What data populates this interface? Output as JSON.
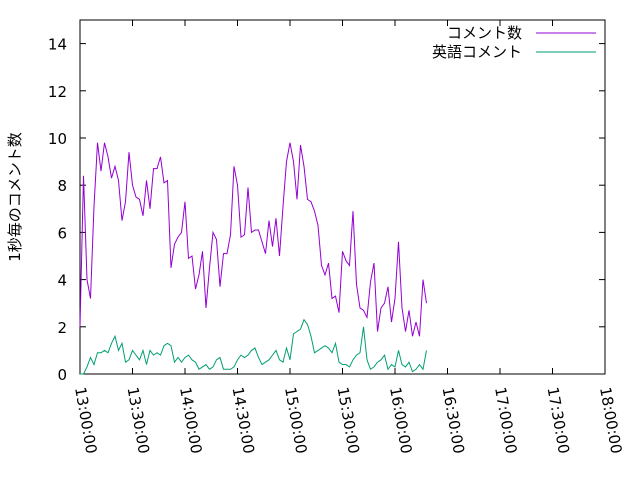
{
  "chart_data": {
    "type": "line",
    "title": "",
    "xlabel": "",
    "ylabel": "1秒毎のコメント数",
    "xlim": [
      "13:00:00",
      "18:00:00"
    ],
    "ylim": [
      0,
      15
    ],
    "yticks": [
      "0",
      "2",
      "4",
      "6",
      "8",
      "10",
      "12",
      "14"
    ],
    "xticks": [
      "13:00:00",
      "13:30:00",
      "14:00:00",
      "14:30:00",
      "15:00:00",
      "15:30:00",
      "16:00:00",
      "16:30:00",
      "17:00:00",
      "17:30:00",
      "18:00:00"
    ],
    "grid": false,
    "legend": "top-right",
    "series": [
      {
        "name": "コメント数",
        "color": "#9400d3",
        "points": [
          [
            "13:00:00",
            2.0
          ],
          [
            "13:02:00",
            8.4
          ],
          [
            "13:04:00",
            4.0
          ],
          [
            "13:06:00",
            3.2
          ],
          [
            "13:08:00",
            7.1
          ],
          [
            "13:10:00",
            9.8
          ],
          [
            "13:12:00",
            8.6
          ],
          [
            "13:14:00",
            9.8
          ],
          [
            "13:16:00",
            9.2
          ],
          [
            "13:18:00",
            8.3
          ],
          [
            "13:20:00",
            8.8
          ],
          [
            "13:22:00",
            8.2
          ],
          [
            "13:24:00",
            6.5
          ],
          [
            "13:26:00",
            7.3
          ],
          [
            "13:28:00",
            9.4
          ],
          [
            "13:30:00",
            8.0
          ],
          [
            "13:32:00",
            7.5
          ],
          [
            "13:34:00",
            7.4
          ],
          [
            "13:36:00",
            6.7
          ],
          [
            "13:38:00",
            8.2
          ],
          [
            "13:40:00",
            7.0
          ],
          [
            "13:42:00",
            8.7
          ],
          [
            "13:44:00",
            8.7
          ],
          [
            "13:46:00",
            9.2
          ],
          [
            "13:48:00",
            8.1
          ],
          [
            "13:50:00",
            8.2
          ],
          [
            "13:52:00",
            4.5
          ],
          [
            "13:54:00",
            5.5
          ],
          [
            "13:56:00",
            5.8
          ],
          [
            "13:58:00",
            6.0
          ],
          [
            "14:00:00",
            7.3
          ],
          [
            "14:02:00",
            4.9
          ],
          [
            "14:04:00",
            5.0
          ],
          [
            "14:06:00",
            3.6
          ],
          [
            "14:08:00",
            4.2
          ],
          [
            "14:10:00",
            5.2
          ],
          [
            "14:12:00",
            2.8
          ],
          [
            "14:14:00",
            4.5
          ],
          [
            "14:16:00",
            6.0
          ],
          [
            "14:18:00",
            5.7
          ],
          [
            "14:20:00",
            3.7
          ],
          [
            "14:22:00",
            5.1
          ],
          [
            "14:24:00",
            5.1
          ],
          [
            "14:26:00",
            5.9
          ],
          [
            "14:28:00",
            8.8
          ],
          [
            "14:30:00",
            8.0
          ],
          [
            "14:32:00",
            5.8
          ],
          [
            "14:34:00",
            5.9
          ],
          [
            "14:36:00",
            7.9
          ],
          [
            "14:38:00",
            6.0
          ],
          [
            "14:40:00",
            6.1
          ],
          [
            "14:42:00",
            6.1
          ],
          [
            "14:44:00",
            5.6
          ],
          [
            "14:46:00",
            5.1
          ],
          [
            "14:48:00",
            6.5
          ],
          [
            "14:50:00",
            5.4
          ],
          [
            "14:52:00",
            6.6
          ],
          [
            "14:54:00",
            5.0
          ],
          [
            "14:56:00",
            7.1
          ],
          [
            "14:58:00",
            9.0
          ],
          [
            "15:00:00",
            9.8
          ],
          [
            "15:02:00",
            9.0
          ],
          [
            "15:04:00",
            7.4
          ],
          [
            "15:06:00",
            9.7
          ],
          [
            "15:08:00",
            8.8
          ],
          [
            "15:10:00",
            7.4
          ],
          [
            "15:12:00",
            7.3
          ],
          [
            "15:14:00",
            6.9
          ],
          [
            "15:16:00",
            6.3
          ],
          [
            "15:18:00",
            4.6
          ],
          [
            "15:20:00",
            4.2
          ],
          [
            "15:22:00",
            4.7
          ],
          [
            "15:24:00",
            3.2
          ],
          [
            "15:26:00",
            3.3
          ],
          [
            "15:28:00",
            2.6
          ],
          [
            "15:30:00",
            5.2
          ],
          [
            "15:32:00",
            4.8
          ],
          [
            "15:34:00",
            4.6
          ],
          [
            "15:36:00",
            6.9
          ],
          [
            "15:38:00",
            3.8
          ],
          [
            "15:40:00",
            2.8
          ],
          [
            "15:42:00",
            2.7
          ],
          [
            "15:44:00",
            2.4
          ],
          [
            "15:46:00",
            3.9
          ],
          [
            "15:48:00",
            4.7
          ],
          [
            "15:50:00",
            1.8
          ],
          [
            "15:52:00",
            2.8
          ],
          [
            "15:54:00",
            3.0
          ],
          [
            "15:56:00",
            3.7
          ],
          [
            "15:58:00",
            2.2
          ],
          [
            "16:00:00",
            3.2
          ],
          [
            "16:02:00",
            5.6
          ],
          [
            "16:04:00",
            2.8
          ],
          [
            "16:06:00",
            1.8
          ],
          [
            "16:08:00",
            2.7
          ],
          [
            "16:10:00",
            1.6
          ],
          [
            "16:12:00",
            2.2
          ],
          [
            "16:14:00",
            1.6
          ],
          [
            "16:16:00",
            4.0
          ],
          [
            "16:18:00",
            3.0
          ]
        ]
      },
      {
        "name": "英語コメント",
        "color": "#009e73",
        "points": [
          [
            "13:00:00",
            0.0
          ],
          [
            "13:02:00",
            0.0
          ],
          [
            "13:04:00",
            0.3
          ],
          [
            "13:06:00",
            0.7
          ],
          [
            "13:08:00",
            0.4
          ],
          [
            "13:10:00",
            0.9
          ],
          [
            "13:12:00",
            0.9
          ],
          [
            "13:14:00",
            1.0
          ],
          [
            "13:16:00",
            0.9
          ],
          [
            "13:18:00",
            1.3
          ],
          [
            "13:20:00",
            1.6
          ],
          [
            "13:22:00",
            1.0
          ],
          [
            "13:24:00",
            1.3
          ],
          [
            "13:26:00",
            0.5
          ],
          [
            "13:28:00",
            0.6
          ],
          [
            "13:30:00",
            1.0
          ],
          [
            "13:32:00",
            0.8
          ],
          [
            "13:34:00",
            0.6
          ],
          [
            "13:36:00",
            1.0
          ],
          [
            "13:38:00",
            0.4
          ],
          [
            "13:40:00",
            1.0
          ],
          [
            "13:42:00",
            0.8
          ],
          [
            "13:44:00",
            0.9
          ],
          [
            "13:46:00",
            0.8
          ],
          [
            "13:48:00",
            1.2
          ],
          [
            "13:50:00",
            1.3
          ],
          [
            "13:52:00",
            1.2
          ],
          [
            "13:54:00",
            0.5
          ],
          [
            "13:56:00",
            0.7
          ],
          [
            "13:58:00",
            0.5
          ],
          [
            "14:00:00",
            0.7
          ],
          [
            "14:02:00",
            0.8
          ],
          [
            "14:04:00",
            0.6
          ],
          [
            "14:06:00",
            0.5
          ],
          [
            "14:08:00",
            0.2
          ],
          [
            "14:10:00",
            0.3
          ],
          [
            "14:12:00",
            0.4
          ],
          [
            "14:14:00",
            0.2
          ],
          [
            "14:16:00",
            0.3
          ],
          [
            "14:18:00",
            0.6
          ],
          [
            "14:20:00",
            0.7
          ],
          [
            "14:22:00",
            0.2
          ],
          [
            "14:24:00",
            0.2
          ],
          [
            "14:26:00",
            0.2
          ],
          [
            "14:28:00",
            0.3
          ],
          [
            "14:30:00",
            0.6
          ],
          [
            "14:32:00",
            0.8
          ],
          [
            "14:34:00",
            0.7
          ],
          [
            "14:36:00",
            0.8
          ],
          [
            "14:38:00",
            1.0
          ],
          [
            "14:40:00",
            1.1
          ],
          [
            "14:42:00",
            0.7
          ],
          [
            "14:44:00",
            0.4
          ],
          [
            "14:46:00",
            0.5
          ],
          [
            "14:48:00",
            0.6
          ],
          [
            "14:50:00",
            0.8
          ],
          [
            "14:52:00",
            1.0
          ],
          [
            "14:54:00",
            0.6
          ],
          [
            "14:56:00",
            0.5
          ],
          [
            "14:58:00",
            1.1
          ],
          [
            "15:00:00",
            0.6
          ],
          [
            "15:02:00",
            1.7
          ],
          [
            "15:04:00",
            1.8
          ],
          [
            "15:06:00",
            1.9
          ],
          [
            "15:08:00",
            2.3
          ],
          [
            "15:10:00",
            2.1
          ],
          [
            "15:12:00",
            1.6
          ],
          [
            "15:14:00",
            0.9
          ],
          [
            "15:16:00",
            1.0
          ],
          [
            "15:18:00",
            1.1
          ],
          [
            "15:20:00",
            1.2
          ],
          [
            "15:22:00",
            1.1
          ],
          [
            "15:24:00",
            0.9
          ],
          [
            "15:26:00",
            1.3
          ],
          [
            "15:28:00",
            0.5
          ],
          [
            "15:30:00",
            0.4
          ],
          [
            "15:32:00",
            0.4
          ],
          [
            "15:34:00",
            0.3
          ],
          [
            "15:36:00",
            0.6
          ],
          [
            "15:38:00",
            0.8
          ],
          [
            "15:40:00",
            0.9
          ],
          [
            "15:42:00",
            2.0
          ],
          [
            "15:44:00",
            0.6
          ],
          [
            "15:46:00",
            0.2
          ],
          [
            "15:48:00",
            0.3
          ],
          [
            "15:50:00",
            0.5
          ],
          [
            "15:52:00",
            0.6
          ],
          [
            "15:54:00",
            0.8
          ],
          [
            "15:56:00",
            0.2
          ],
          [
            "15:58:00",
            0.4
          ],
          [
            "16:00:00",
            0.3
          ],
          [
            "16:02:00",
            1.0
          ],
          [
            "16:04:00",
            0.4
          ],
          [
            "16:06:00",
            0.3
          ],
          [
            "16:08:00",
            0.5
          ],
          [
            "16:10:00",
            0.1
          ],
          [
            "16:12:00",
            0.2
          ],
          [
            "16:14:00",
            0.4
          ],
          [
            "16:16:00",
            0.2
          ],
          [
            "16:18:00",
            1.0
          ]
        ]
      }
    ]
  }
}
